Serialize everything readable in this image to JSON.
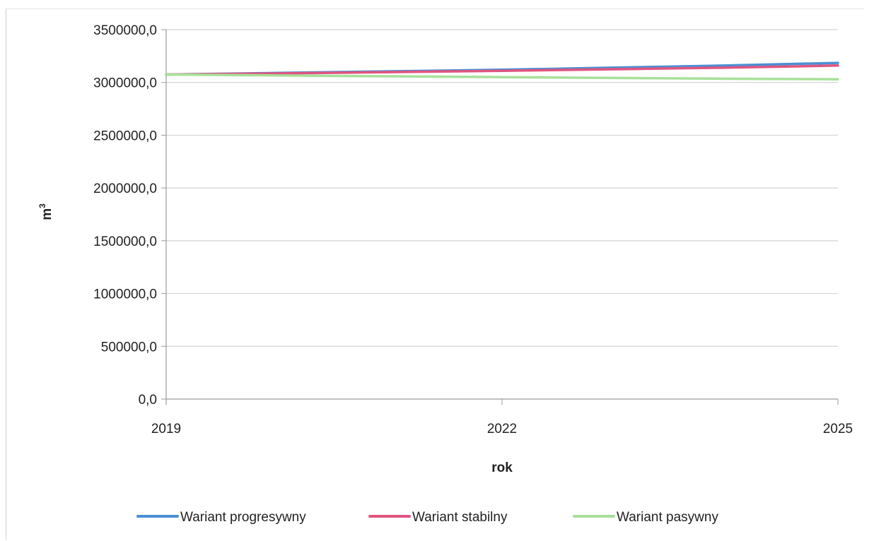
{
  "chart_data": {
    "type": "line",
    "xlabel": "rok",
    "ylabel": "m³",
    "x_ticks": [
      "2019",
      "2022",
      "2025"
    ],
    "y_ticks": [
      "0,0",
      "500000,0",
      "1000000,0",
      "1500000,0",
      "2000000,0",
      "2500000,0",
      "3000000,0",
      "3500000,0"
    ],
    "ylim": [
      0,
      3500000
    ],
    "grid": true,
    "legend_position": "bottom",
    "x": [
      2019,
      2020,
      2021,
      2022,
      2023,
      2024,
      2025
    ],
    "series": [
      {
        "name": "Wariant progresywny",
        "color": "#4a8fd4",
        "values": [
          3075000,
          3090000,
          3105000,
          3120000,
          3140000,
          3160000,
          3185000
        ]
      },
      {
        "name": "Wariant stabilny",
        "color": "#e0557f",
        "values": [
          3075000,
          3085000,
          3098000,
          3110000,
          3125000,
          3140000,
          3160000
        ]
      },
      {
        "name": "Wariant pasywny",
        "color": "#a8e09a",
        "values": [
          3075000,
          3066000,
          3058000,
          3050000,
          3042000,
          3035000,
          3030000
        ]
      }
    ]
  }
}
